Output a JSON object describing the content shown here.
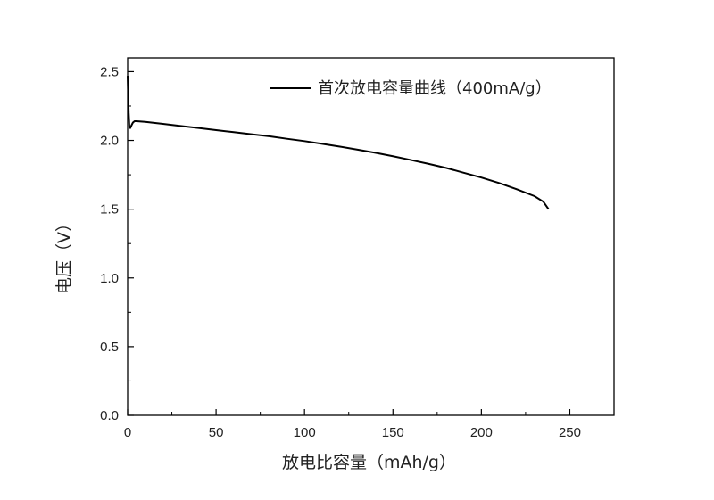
{
  "chart_data": {
    "type": "line",
    "title": "",
    "xlabel": "放电比容量（mAh/g）",
    "ylabel": "电压（V）",
    "xlim": [
      0,
      275
    ],
    "ylim": [
      0,
      2.6
    ],
    "x_ticks": [
      0,
      50,
      100,
      150,
      200,
      250
    ],
    "x_tick_labels": [
      "0",
      "50",
      "100",
      "150",
      "200",
      "250"
    ],
    "y_ticks": [
      0,
      0.5,
      1.0,
      1.5,
      2.0,
      2.5
    ],
    "y_tick_labels": [
      "0.0",
      "0.5",
      "1.0",
      "1.5",
      "2.0",
      "2.5"
    ],
    "x_minor_step": 25,
    "y_minor_step": 0.25,
    "grid": false,
    "legend_position": "top-right",
    "series": [
      {
        "name": "首次放电容量曲线（400mA/g）",
        "color": "#000000",
        "x": [
          0,
          0.3,
          0.6,
          1.0,
          1.5,
          2.2,
          3.0,
          4.0,
          5.0,
          10,
          20,
          30,
          40,
          50,
          60,
          70,
          80,
          90,
          100,
          110,
          120,
          130,
          140,
          150,
          160,
          170,
          180,
          190,
          200,
          210,
          220,
          230,
          235,
          238
        ],
        "y": [
          2.47,
          2.35,
          2.2,
          2.1,
          2.09,
          2.11,
          2.13,
          2.14,
          2.14,
          2.135,
          2.12,
          2.105,
          2.09,
          2.075,
          2.06,
          2.045,
          2.03,
          2.012,
          1.995,
          1.975,
          1.955,
          1.933,
          1.91,
          1.885,
          1.858,
          1.83,
          1.8,
          1.765,
          1.73,
          1.69,
          1.645,
          1.595,
          1.555,
          1.5
        ]
      }
    ]
  }
}
